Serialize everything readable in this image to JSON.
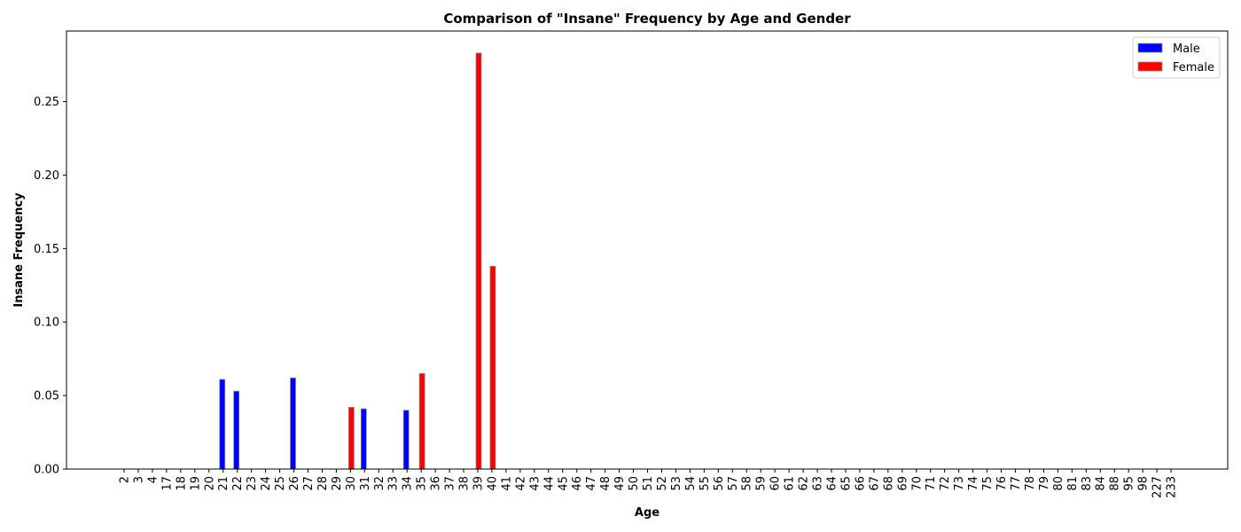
{
  "chart_data": {
    "type": "bar",
    "title": "Comparison of \"Insane\" Frequency by Age and Gender",
    "xlabel": "Age",
    "ylabel": "Insane Frequency",
    "categories": [
      "2",
      "3",
      "4",
      "17",
      "18",
      "19",
      "20",
      "21",
      "22",
      "23",
      "24",
      "25",
      "26",
      "27",
      "28",
      "29",
      "30",
      "31",
      "32",
      "33",
      "34",
      "35",
      "36",
      "37",
      "38",
      "39",
      "40",
      "41",
      "42",
      "43",
      "44",
      "45",
      "46",
      "47",
      "48",
      "49",
      "50",
      "51",
      "52",
      "53",
      "54",
      "55",
      "56",
      "57",
      "58",
      "59",
      "60",
      "61",
      "62",
      "63",
      "64",
      "65",
      "66",
      "67",
      "68",
      "69",
      "70",
      "71",
      "72",
      "73",
      "74",
      "75",
      "76",
      "77",
      "78",
      "79",
      "80",
      "81",
      "83",
      "84",
      "88",
      "95",
      "98",
      "227",
      "233"
    ],
    "series": [
      {
        "name": "Male",
        "color": "#0000ff",
        "values": [
          0,
          0,
          0,
          0,
          0,
          0,
          0,
          0.061,
          0.053,
          0,
          0,
          0,
          0.062,
          0,
          0,
          0,
          0,
          0.041,
          0,
          0,
          0.04,
          0,
          0,
          0,
          0,
          0,
          0,
          0,
          0,
          0,
          0,
          0,
          0,
          0,
          0,
          0,
          0,
          0,
          0,
          0,
          0,
          0,
          0,
          0,
          0,
          0,
          0,
          0,
          0,
          0,
          0,
          0,
          0,
          0,
          0,
          0,
          0,
          0,
          0,
          0,
          0,
          0,
          0,
          0,
          0,
          0,
          0,
          0,
          0,
          0,
          0,
          0,
          0,
          0,
          0
        ]
      },
      {
        "name": "Female",
        "color": "#ff0000",
        "values": [
          0,
          0,
          0,
          0,
          0,
          0,
          0,
          0,
          0,
          0,
          0,
          0,
          0,
          0,
          0,
          0,
          0.042,
          0,
          0,
          0,
          0,
          0.065,
          0,
          0,
          0,
          0.283,
          0.138,
          0,
          0,
          0,
          0,
          0,
          0,
          0,
          0,
          0,
          0,
          0,
          0,
          0,
          0,
          0,
          0,
          0,
          0,
          0,
          0,
          0,
          0,
          0,
          0,
          0,
          0,
          0,
          0,
          0,
          0,
          0,
          0,
          0,
          0,
          0,
          0,
          0,
          0,
          0,
          0,
          0,
          0,
          0,
          0,
          0,
          0,
          0,
          0
        ]
      }
    ],
    "ylim": [
      0,
      0.298
    ],
    "yticks": [
      "0.00",
      "0.05",
      "0.10",
      "0.15",
      "0.20",
      "0.25"
    ],
    "grid": false,
    "legend": "top-right"
  }
}
